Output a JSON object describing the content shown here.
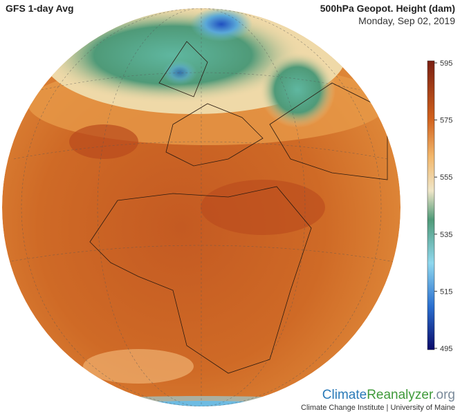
{
  "header": {
    "title": "GFS 1-day Avg",
    "variable": "500hPa Geopot. Height (dam)",
    "date": "Monday, Sep 02, 2019"
  },
  "colorbar": {
    "range": [
      495,
      595
    ],
    "ticks": [
      595,
      575,
      555,
      535,
      515,
      495
    ]
  },
  "footer": {
    "logo": [
      "Climate",
      "Reanalyzer",
      ".org"
    ],
    "credit": "Climate Change Institute | University of Maine"
  }
}
